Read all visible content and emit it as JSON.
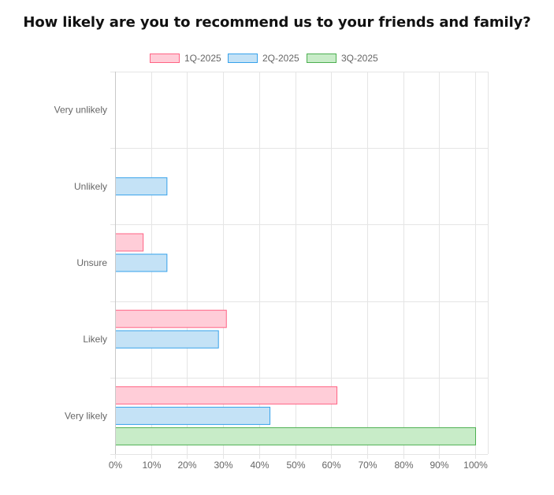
{
  "chart_data": {
    "type": "bar",
    "orientation": "horizontal",
    "title": "How likely are you to recommend us to your friends and family?",
    "categories": [
      "Very unlikely",
      "Unlikely",
      "Unsure",
      "Likely",
      "Very likely"
    ],
    "series": [
      {
        "name": "1Q-2025",
        "values": [
          0,
          0,
          7.7,
          30.8,
          61.5
        ],
        "fill": "#ffcdd8",
        "stroke": "#ff6384"
      },
      {
        "name": "2Q-2025",
        "values": [
          0,
          14.3,
          14.3,
          28.6,
          42.9
        ],
        "fill": "#c4e2f6",
        "stroke": "#36a2eb"
      },
      {
        "name": "3Q-2025",
        "values": [
          0,
          0,
          0,
          0,
          100
        ],
        "fill": "#c8ecc8",
        "stroke": "#4caf50"
      }
    ],
    "x_ticks": [
      "0%",
      "10%",
      "20%",
      "30%",
      "40%",
      "50%",
      "60%",
      "70%",
      "80%",
      "90%",
      "100%"
    ],
    "xlim": [
      0,
      100
    ],
    "grid": true,
    "legend_position": "top"
  }
}
